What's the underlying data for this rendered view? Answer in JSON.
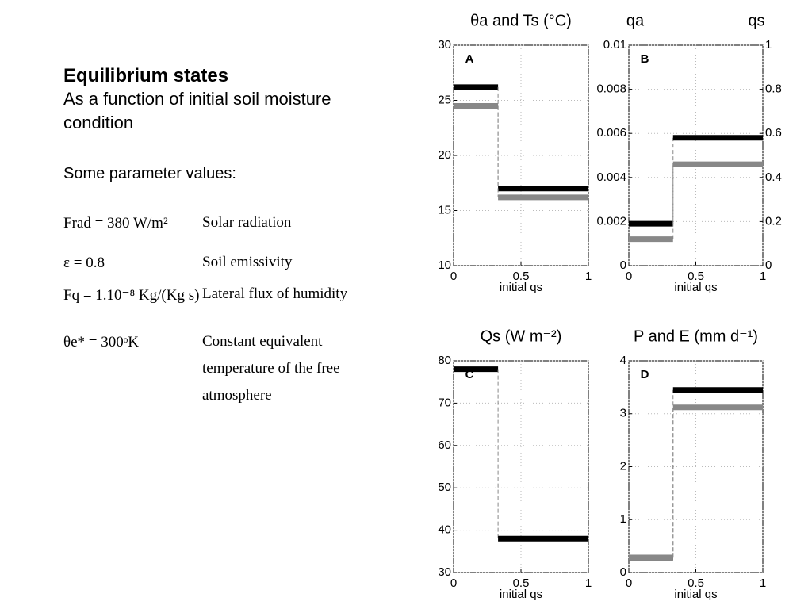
{
  "slide": {
    "title": "Equilibrium states",
    "subtitle": "As a function of initial soil moisture condition",
    "params_heading": "Some parameter values:",
    "params": [
      {
        "formula": "Frad = 380 W/m²",
        "description": "Solar radiation"
      },
      {
        "formula": "ε = 0.8",
        "description": "Soil emissivity"
      },
      {
        "formula": "Fq = 1.10⁻⁸ Kg/(Kg s)",
        "description": "Lateral flux of humidity"
      },
      {
        "formula": "θe* = 300ᵒK",
        "description": "Constant equivalent temperature of the free atmosphere"
      }
    ]
  },
  "chart_data": [
    {
      "type": "line",
      "title": "θa and Ts (°C)",
      "panel_label": "A",
      "x_label": "initial qs",
      "xlim": [
        0,
        1
      ],
      "xticks": [
        0,
        0.5,
        1
      ],
      "ylim": [
        10,
        30
      ],
      "yticks": [
        10,
        15,
        20,
        25,
        30
      ],
      "grid": true,
      "series": [
        {
          "color": "#000000",
          "x": [
            0,
            0.33,
            0.33,
            1
          ],
          "values": [
            26.2,
            26.2,
            17,
            17
          ]
        },
        {
          "color": "#888888",
          "x": [
            0,
            0.33,
            0.33,
            1
          ],
          "values": [
            24.5,
            24.5,
            16.2,
            16.2
          ]
        }
      ]
    },
    {
      "type": "line",
      "title_left": "qa",
      "title_right": "qs",
      "panel_label": "B",
      "x_label": "initial qs",
      "xlim": [
        0,
        1
      ],
      "xticks": [
        0,
        0.5,
        1
      ],
      "ylim": [
        0,
        0.01
      ],
      "yticks": [
        0,
        0.002,
        0.004,
        0.006,
        0.008,
        0.01
      ],
      "y2lim": [
        0,
        1
      ],
      "y2ticks": [
        0,
        0.2,
        0.4,
        0.6,
        0.8,
        1
      ],
      "grid": true,
      "series": [
        {
          "color": "#000000",
          "x": [
            0,
            0.33,
            0.33,
            1
          ],
          "values": [
            0.0019,
            0.0019,
            0.0058,
            0.0058
          ]
        },
        {
          "color": "#888888",
          "axis": "y2",
          "x": [
            0,
            0.33,
            0.33,
            1
          ],
          "values": [
            0.12,
            0.12,
            0.46,
            0.46
          ]
        }
      ]
    },
    {
      "type": "line",
      "title": "Qs (W m⁻²)",
      "panel_label": "C",
      "x_label": "initial qs",
      "xlim": [
        0,
        1
      ],
      "xticks": [
        0,
        0.5,
        1
      ],
      "ylim": [
        30,
        80
      ],
      "yticks": [
        30,
        40,
        50,
        60,
        70,
        80
      ],
      "grid": true,
      "series": [
        {
          "color": "#000000",
          "x": [
            0,
            0.33,
            0.33,
            1
          ],
          "values": [
            78,
            78,
            38,
            38
          ]
        }
      ]
    },
    {
      "type": "line",
      "title": "P and E (mm d⁻¹)",
      "panel_label": "D",
      "x_label": "initial qs",
      "xlim": [
        0,
        1
      ],
      "xticks": [
        0,
        0.5,
        1
      ],
      "ylim": [
        0,
        4
      ],
      "yticks": [
        0,
        1,
        2,
        3,
        4
      ],
      "grid": true,
      "series": [
        {
          "color": "#000000",
          "x": [
            0,
            0.33,
            0.33,
            1
          ],
          "values": [
            0.28,
            0.28,
            3.45,
            3.45
          ]
        },
        {
          "color": "#888888",
          "x": [
            0,
            0.33,
            0.33,
            1
          ],
          "values": [
            0.28,
            0.28,
            3.12,
            3.12
          ]
        }
      ]
    }
  ]
}
